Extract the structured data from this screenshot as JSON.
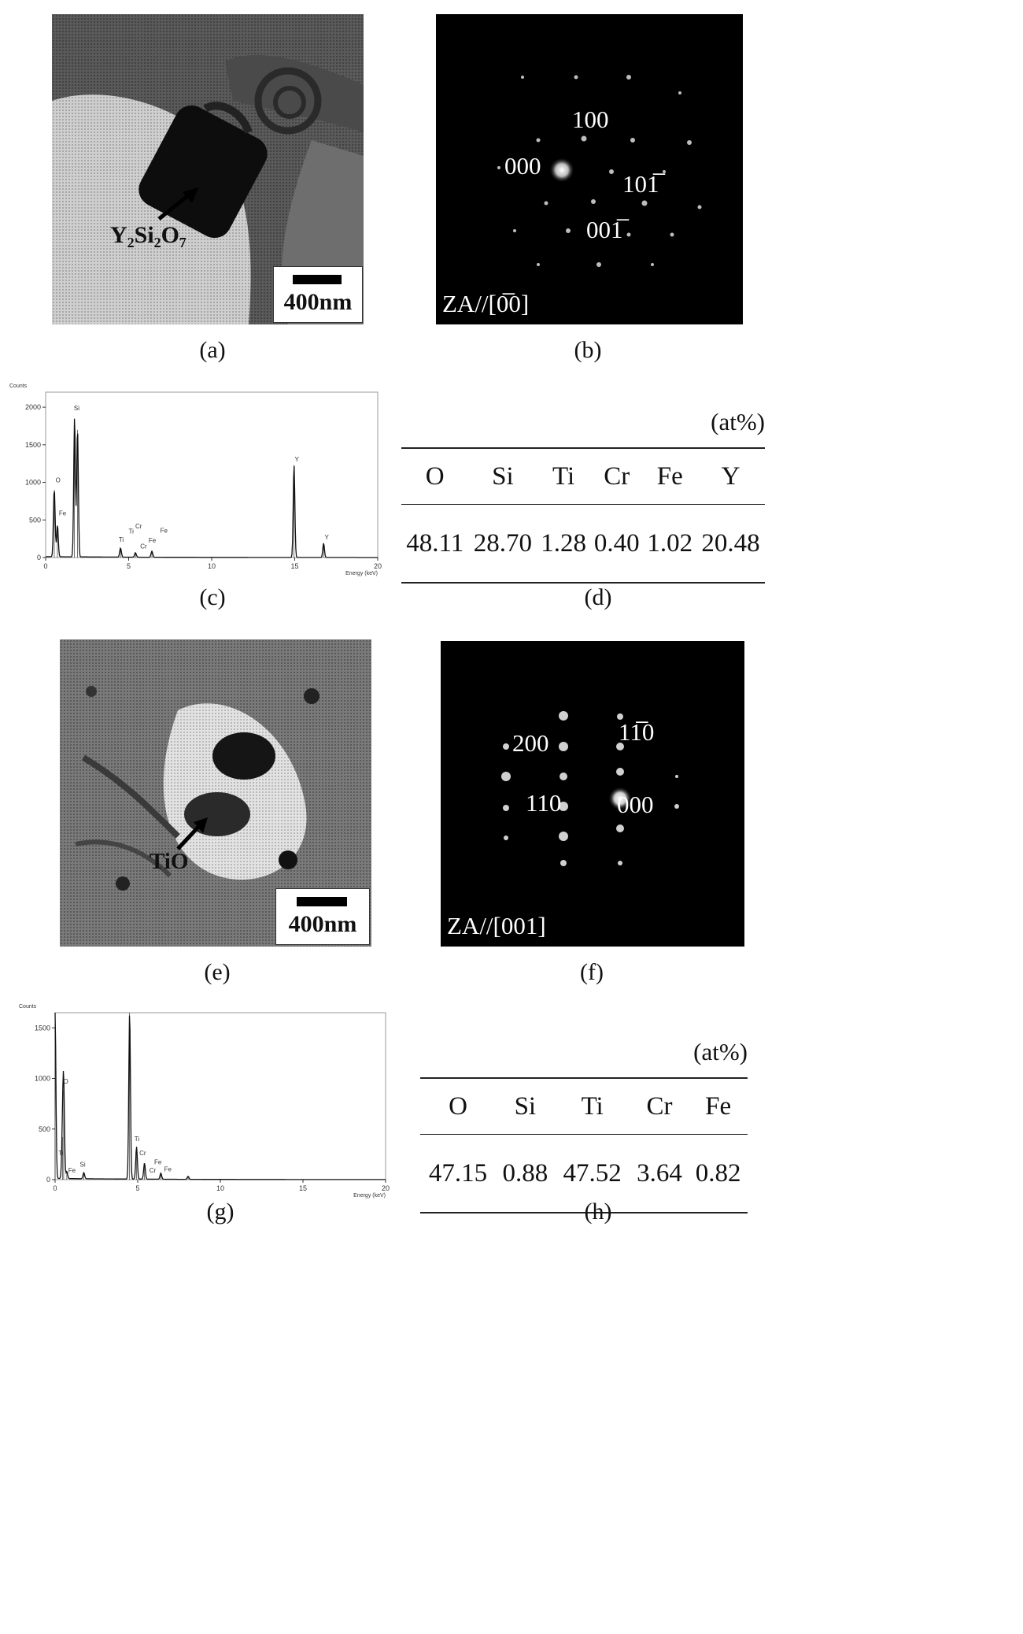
{
  "panels": {
    "a": {
      "caption": "(a)",
      "phase_label": "Y₂Si₂O₇",
      "scale_bar": "400nm"
    },
    "b": {
      "caption": "(b)",
      "zone_axis": "ZA//[0̅0]",
      "spots": [
        "100",
        "000",
        "101̅",
        "001̅"
      ]
    },
    "c": {
      "caption": "(c)",
      "chart_data": {
        "type": "line",
        "title": "",
        "ylabel": "Counts",
        "xlabel": "Energy (keV)",
        "xlim": [
          0,
          20
        ],
        "ylim": [
          0,
          2200
        ],
        "x_ticks": [
          "0",
          "5",
          "10",
          "15",
          "20"
        ],
        "y_ticks": [
          "0",
          "500",
          "1000",
          "1500",
          "2000"
        ],
        "peaks": [
          {
            "label": "O",
            "x": 0.52,
            "y": 900
          },
          {
            "label": "Fe",
            "x": 0.71,
            "y": 420
          },
          {
            "label": "Si",
            "x": 1.74,
            "y": 1850
          },
          {
            "label": "Y",
            "x": 1.92,
            "y": 1700
          },
          {
            "label": "Ti",
            "x": 4.51,
            "y": 120
          },
          {
            "label": "Cr",
            "x": 5.41,
            "y": 60
          },
          {
            "label": "Fe",
            "x": 6.4,
            "y": 80
          },
          {
            "label": "Y",
            "x": 14.96,
            "y": 1230
          },
          {
            "label": "Y",
            "x": 16.74,
            "y": 190
          }
        ],
        "peak_label_text": [
          "Si",
          "O",
          "Fe",
          "Ti",
          "Cr",
          "Ti",
          "Fe",
          "Cr",
          "Fe",
          "Y",
          "Y"
        ]
      }
    },
    "d": {
      "caption": "(d)",
      "unit": "(at%)",
      "headers": [
        "O",
        "Si",
        "Ti",
        "Cr",
        "Fe",
        "Y"
      ],
      "values": [
        "48.11",
        "28.70",
        "1.28",
        "0.40",
        "1.02",
        "20.48"
      ]
    },
    "e": {
      "caption": "(e)",
      "phase_label": "TiO",
      "scale_bar": "400nm"
    },
    "f": {
      "caption": "(f)",
      "zone_axis": "ZA//[001]",
      "spots": [
        "200",
        "11̅0",
        "110",
        "000"
      ]
    },
    "g": {
      "caption": "(g)",
      "chart_data": {
        "type": "line",
        "title": "",
        "ylabel": "Counts",
        "xlabel": "Energy (keV)",
        "xlim": [
          0,
          20
        ],
        "ylim": [
          0,
          1650
        ],
        "x_ticks": [
          "0",
          "5",
          "10",
          "15",
          "20"
        ],
        "y_ticks": [
          "0",
          "500",
          "1000",
          "1500"
        ],
        "peaks": [
          {
            "label": "",
            "x": 0.0,
            "y": 1650
          },
          {
            "label": "Ti",
            "x": 0.45,
            "y": 420
          },
          {
            "label": "O",
            "x": 0.52,
            "y": 880
          },
          {
            "label": "Fe",
            "x": 0.71,
            "y": 70
          },
          {
            "label": "Si",
            "x": 1.74,
            "y": 60
          },
          {
            "label": "Ti",
            "x": 4.51,
            "y": 1650
          },
          {
            "label": "Ti",
            "x": 4.93,
            "y": 320
          },
          {
            "label": "Cr",
            "x": 5.41,
            "y": 160
          },
          {
            "label": "Fe",
            "x": 6.4,
            "y": 60
          },
          {
            "label": "",
            "x": 8.05,
            "y": 30
          }
        ],
        "peak_label_text": [
          "O",
          "Ti",
          "Fe",
          "Si",
          "Ti",
          "Cr",
          "Fe",
          "Cr",
          "Fe"
        ]
      }
    },
    "h": {
      "caption": "(h)",
      "unit": "(at%)",
      "headers": [
        "O",
        "Si",
        "Ti",
        "Cr",
        "Fe"
      ],
      "values": [
        "47.15",
        "0.88",
        "47.52",
        "3.64",
        "0.82"
      ]
    }
  }
}
